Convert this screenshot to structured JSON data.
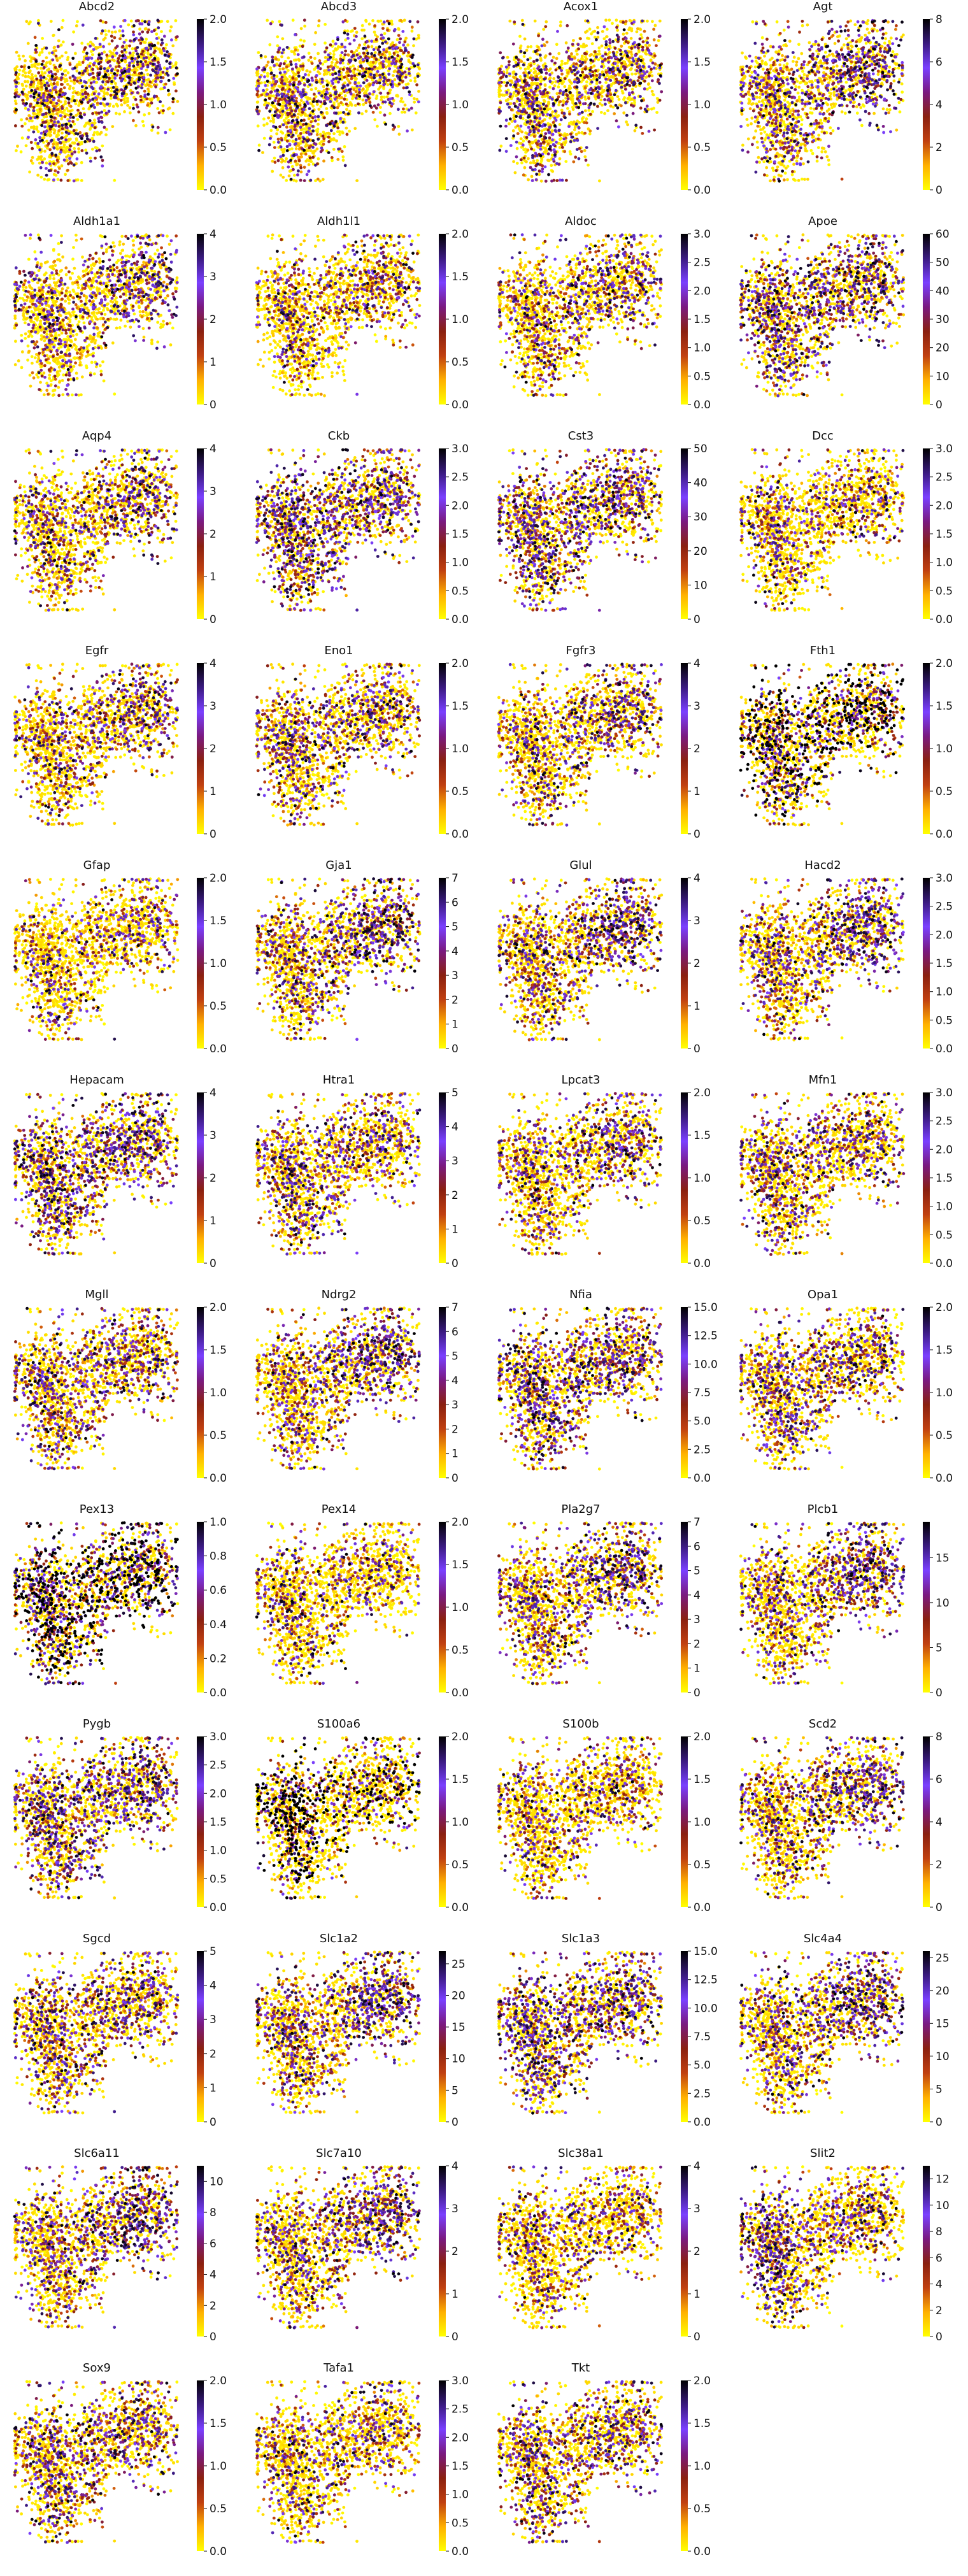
{
  "figure": {
    "layout": "12 rows x 4 columns of embedding scatter panels, points coloured by gene expression",
    "colormap": "gnuplot-like (yellow low -> orange -> red -> purple -> black high)",
    "colorbar_colors": [
      "#ffff00",
      "#ffb000",
      "#c04010",
      "#8a2010",
      "#7a1a80",
      "#7a40ff",
      "#3a1a80",
      "#000000"
    ],
    "point_style": "small round dots, each cell plotted once per panel",
    "axes_visible": false
  },
  "chart_data": [
    {
      "type": "scatter",
      "title": "Abcd2",
      "color_range": [
        0,
        2.0
      ],
      "colorbar_ticks": [
        "0.0",
        "0.5",
        "1.0",
        "1.5",
        "2.0"
      ],
      "expression_pattern": "moderate, dark spots at lower-left cluster and right lobe"
    },
    {
      "type": "scatter",
      "title": "Abcd3",
      "color_range": [
        0,
        2.0
      ],
      "colorbar_ticks": [
        "0.0",
        "0.5",
        "1.0",
        "1.5",
        "2.0"
      ],
      "expression_pattern": "broad sparse expression"
    },
    {
      "type": "scatter",
      "title": "Acox1",
      "color_range": [
        0,
        2.0
      ],
      "colorbar_ticks": [
        "0.0",
        "0.5",
        "1.0",
        "1.5",
        "2.0"
      ],
      "expression_pattern": "broad sparse expression"
    },
    {
      "type": "scatter",
      "title": "Agt",
      "color_range": [
        0,
        8
      ],
      "colorbar_ticks": [
        "0",
        "2",
        "4",
        "6",
        "8"
      ],
      "expression_pattern": "high in right lobe, moderate elsewhere"
    },
    {
      "type": "scatter",
      "title": "Aldh1a1",
      "color_range": [
        0,
        4
      ],
      "colorbar_ticks": [
        "0",
        "1",
        "2",
        "3",
        "4"
      ],
      "expression_pattern": "moderate in right lobe"
    },
    {
      "type": "scatter",
      "title": "Aldh1l1",
      "color_range": [
        0,
        2.0
      ],
      "colorbar_ticks": [
        "0.0",
        "0.5",
        "1.0",
        "1.5",
        "2.0"
      ],
      "expression_pattern": "sparse, dark spots right lobe"
    },
    {
      "type": "scatter",
      "title": "Aldoc",
      "color_range": [
        0,
        3.0
      ],
      "colorbar_ticks": [
        "0.0",
        "0.5",
        "1.0",
        "1.5",
        "2.0",
        "2.5",
        "3.0"
      ],
      "expression_pattern": "moderate to high in right lobe"
    },
    {
      "type": "scatter",
      "title": "Apoe",
      "color_range": [
        0,
        60
      ],
      "colorbar_ticks": [
        "0",
        "10",
        "20",
        "30",
        "40",
        "50",
        "60"
      ],
      "expression_pattern": "high everywhere"
    },
    {
      "type": "scatter",
      "title": "Aqp4",
      "color_range": [
        0,
        4
      ],
      "colorbar_ticks": [
        "0",
        "1",
        "2",
        "3",
        "4"
      ],
      "expression_pattern": "moderate in right lobe"
    },
    {
      "type": "scatter",
      "title": "Ckb",
      "color_range": [
        0,
        3.0
      ],
      "colorbar_ticks": [
        "0.0",
        "0.5",
        "1.0",
        "1.5",
        "2.0",
        "2.5",
        "3.0"
      ],
      "expression_pattern": "high everywhere"
    },
    {
      "type": "scatter",
      "title": "Cst3",
      "color_range": [
        0,
        50
      ],
      "colorbar_ticks": [
        "0",
        "10",
        "20",
        "30",
        "40",
        "50"
      ],
      "expression_pattern": "high everywhere"
    },
    {
      "type": "scatter",
      "title": "Dcc",
      "color_range": [
        0,
        3.0
      ],
      "colorbar_ticks": [
        "0.0",
        "0.5",
        "1.0",
        "1.5",
        "2.0",
        "2.5",
        "3.0"
      ],
      "expression_pattern": "low, few dark spots at left edge"
    },
    {
      "type": "scatter",
      "title": "Egfr",
      "color_range": [
        0,
        4
      ],
      "colorbar_ticks": [
        "0",
        "1",
        "2",
        "3",
        "4"
      ],
      "expression_pattern": "moderate in right lobe"
    },
    {
      "type": "scatter",
      "title": "Eno1",
      "color_range": [
        0,
        2.0
      ],
      "colorbar_ticks": [
        "0.0",
        "0.5",
        "1.0",
        "1.5",
        "2.0"
      ],
      "expression_pattern": "broad moderate"
    },
    {
      "type": "scatter",
      "title": "Fgfr3",
      "color_range": [
        0,
        4
      ],
      "colorbar_ticks": [
        "0",
        "1",
        "2",
        "3",
        "4"
      ],
      "expression_pattern": "moderate in right lobe"
    },
    {
      "type": "scatter",
      "title": "Fth1",
      "color_range": [
        0,
        2.0
      ],
      "colorbar_ticks": [
        "0.0",
        "0.5",
        "1.0",
        "1.5",
        "2.0"
      ],
      "expression_pattern": "broad, many black spots"
    },
    {
      "type": "scatter",
      "title": "Gfap",
      "color_range": [
        0,
        2.0
      ],
      "colorbar_ticks": [
        "0.0",
        "0.5",
        "1.0",
        "1.5",
        "2.0"
      ],
      "expression_pattern": "low, dark spots right lobe"
    },
    {
      "type": "scatter",
      "title": "Gja1",
      "color_range": [
        0,
        7
      ],
      "colorbar_ticks": [
        "0",
        "1",
        "2",
        "3",
        "4",
        "5",
        "6",
        "7"
      ],
      "expression_pattern": "high in right lobe"
    },
    {
      "type": "scatter",
      "title": "Glul",
      "color_range": [
        0,
        4
      ],
      "colorbar_ticks": [
        "0",
        "1",
        "2",
        "3",
        "4"
      ],
      "expression_pattern": "high in right lobe"
    },
    {
      "type": "scatter",
      "title": "Hacd2",
      "color_range": [
        0,
        3.0
      ],
      "colorbar_ticks": [
        "0.0",
        "0.5",
        "1.0",
        "1.5",
        "2.0",
        "2.5",
        "3.0"
      ],
      "expression_pattern": "high in right lobe"
    },
    {
      "type": "scatter",
      "title": "Hepacam",
      "color_range": [
        0,
        4
      ],
      "colorbar_ticks": [
        "0",
        "1",
        "2",
        "3",
        "4"
      ],
      "expression_pattern": "high everywhere"
    },
    {
      "type": "scatter",
      "title": "Htra1",
      "color_range": [
        0,
        5
      ],
      "colorbar_ticks": [
        "0",
        "1",
        "2",
        "3",
        "4",
        "5"
      ],
      "expression_pattern": "moderate everywhere"
    },
    {
      "type": "scatter",
      "title": "Lpcat3",
      "color_range": [
        0,
        2.0
      ],
      "colorbar_ticks": [
        "0.0",
        "0.5",
        "1.0",
        "1.5",
        "2.0"
      ],
      "expression_pattern": "moderate, dark right lobe"
    },
    {
      "type": "scatter",
      "title": "Mfn1",
      "color_range": [
        0,
        3.0
      ],
      "colorbar_ticks": [
        "0.0",
        "0.5",
        "1.0",
        "1.5",
        "2.0",
        "2.5",
        "3.0"
      ],
      "expression_pattern": "moderate"
    },
    {
      "type": "scatter",
      "title": "Mgll",
      "color_range": [
        0,
        2.0
      ],
      "colorbar_ticks": [
        "0.0",
        "0.5",
        "1.0",
        "1.5",
        "2.0"
      ],
      "expression_pattern": "moderate, dark spots"
    },
    {
      "type": "scatter",
      "title": "Ndrg2",
      "color_range": [
        0,
        7
      ],
      "colorbar_ticks": [
        "0",
        "1",
        "2",
        "3",
        "4",
        "5",
        "6",
        "7"
      ],
      "expression_pattern": "high in right lobe"
    },
    {
      "type": "scatter",
      "title": "Nfia",
      "color_range": [
        0,
        15.0
      ],
      "colorbar_ticks": [
        "0.0",
        "2.5",
        "5.0",
        "7.5",
        "10.0",
        "12.5",
        "15.0"
      ],
      "expression_pattern": "high everywhere"
    },
    {
      "type": "scatter",
      "title": "Opa1",
      "color_range": [
        0,
        2.0
      ],
      "colorbar_ticks": [
        "0.0",
        "0.5",
        "1.0",
        "1.5",
        "2.0"
      ],
      "expression_pattern": "moderate, dark spots"
    },
    {
      "type": "scatter",
      "title": "Pex13",
      "color_range": [
        0,
        1.0
      ],
      "colorbar_ticks": [
        "0.0",
        "0.2",
        "0.4",
        "0.6",
        "0.8",
        "1.0"
      ],
      "expression_pattern": "binary, many black spots"
    },
    {
      "type": "scatter",
      "title": "Pex14",
      "color_range": [
        0,
        2.0
      ],
      "colorbar_ticks": [
        "0.0",
        "0.5",
        "1.0",
        "1.5",
        "2.0"
      ],
      "expression_pattern": "sparse moderate"
    },
    {
      "type": "scatter",
      "title": "Pla2g7",
      "color_range": [
        0,
        7
      ],
      "colorbar_ticks": [
        "0",
        "1",
        "2",
        "3",
        "4",
        "5",
        "6",
        "7"
      ],
      "expression_pattern": "high in right lobe"
    },
    {
      "type": "scatter",
      "title": "Plcb1",
      "color_range": [
        0,
        19
      ],
      "colorbar_ticks": [
        "0",
        "5",
        "10",
        "15"
      ],
      "expression_pattern": "high in right lobe"
    },
    {
      "type": "scatter",
      "title": "Pygb",
      "color_range": [
        0,
        3.0
      ],
      "colorbar_ticks": [
        "0.0",
        "0.5",
        "1.0",
        "1.5",
        "2.0",
        "2.5",
        "3.0"
      ],
      "expression_pattern": "high everywhere"
    },
    {
      "type": "scatter",
      "title": "S100a6",
      "color_range": [
        0,
        2.0
      ],
      "colorbar_ticks": [
        "0.0",
        "0.5",
        "1.0",
        "1.5",
        "2.0"
      ],
      "expression_pattern": "sparse, black spots left lobe"
    },
    {
      "type": "scatter",
      "title": "S100b",
      "color_range": [
        0,
        2.0
      ],
      "colorbar_ticks": [
        "0.0",
        "0.5",
        "1.0",
        "1.5",
        "2.0"
      ],
      "expression_pattern": "sparse moderate"
    },
    {
      "type": "scatter",
      "title": "Scd2",
      "color_range": [
        0,
        8
      ],
      "colorbar_ticks": [
        "0",
        "2",
        "4",
        "6",
        "8"
      ],
      "expression_pattern": "high in right lobe"
    },
    {
      "type": "scatter",
      "title": "Sgcd",
      "color_range": [
        0,
        5
      ],
      "colorbar_ticks": [
        "0",
        "1",
        "2",
        "3",
        "4",
        "5"
      ],
      "expression_pattern": "moderate"
    },
    {
      "type": "scatter",
      "title": "Slc1a2",
      "color_range": [
        0,
        27
      ],
      "colorbar_ticks": [
        "0",
        "5",
        "10",
        "15",
        "20",
        "25"
      ],
      "expression_pattern": "high in right lobe"
    },
    {
      "type": "scatter",
      "title": "Slc1a3",
      "color_range": [
        0,
        15.0
      ],
      "colorbar_ticks": [
        "0.0",
        "2.5",
        "5.0",
        "7.5",
        "10.0",
        "12.5",
        "15.0"
      ],
      "expression_pattern": "high everywhere"
    },
    {
      "type": "scatter",
      "title": "Slc4a4",
      "color_range": [
        0,
        26
      ],
      "colorbar_ticks": [
        "0",
        "5",
        "10",
        "15",
        "20",
        "25"
      ],
      "expression_pattern": "high in right lobe"
    },
    {
      "type": "scatter",
      "title": "Slc6a11",
      "color_range": [
        0,
        11
      ],
      "colorbar_ticks": [
        "0",
        "2",
        "4",
        "6",
        "8",
        "10"
      ],
      "expression_pattern": "high in right lobe"
    },
    {
      "type": "scatter",
      "title": "Slc7a10",
      "color_range": [
        0,
        4
      ],
      "colorbar_ticks": [
        "0",
        "1",
        "2",
        "3",
        "4"
      ],
      "expression_pattern": "high in right lobe"
    },
    {
      "type": "scatter",
      "title": "Slc38a1",
      "color_range": [
        0,
        4
      ],
      "colorbar_ticks": [
        "0",
        "1",
        "2",
        "3",
        "4"
      ],
      "expression_pattern": "sparse moderate"
    },
    {
      "type": "scatter",
      "title": "Slit2",
      "color_range": [
        0,
        13
      ],
      "colorbar_ticks": [
        "0",
        "2",
        "4",
        "6",
        "8",
        "10",
        "12"
      ],
      "expression_pattern": "high at left lobe"
    },
    {
      "type": "scatter",
      "title": "Sox9",
      "color_range": [
        0,
        2.0
      ],
      "colorbar_ticks": [
        "0.0",
        "0.5",
        "1.0",
        "1.5",
        "2.0"
      ],
      "expression_pattern": "moderate"
    },
    {
      "type": "scatter",
      "title": "Tafa1",
      "color_range": [
        0,
        3.0
      ],
      "colorbar_ticks": [
        "0.0",
        "0.5",
        "1.0",
        "1.5",
        "2.0",
        "2.5",
        "3.0"
      ],
      "expression_pattern": "sparse moderate"
    },
    {
      "type": "scatter",
      "title": "Tkt",
      "color_range": [
        0,
        2.0
      ],
      "colorbar_ticks": [
        "0.0",
        "0.5",
        "1.0",
        "1.5",
        "2.0"
      ],
      "expression_pattern": "moderate"
    }
  ]
}
